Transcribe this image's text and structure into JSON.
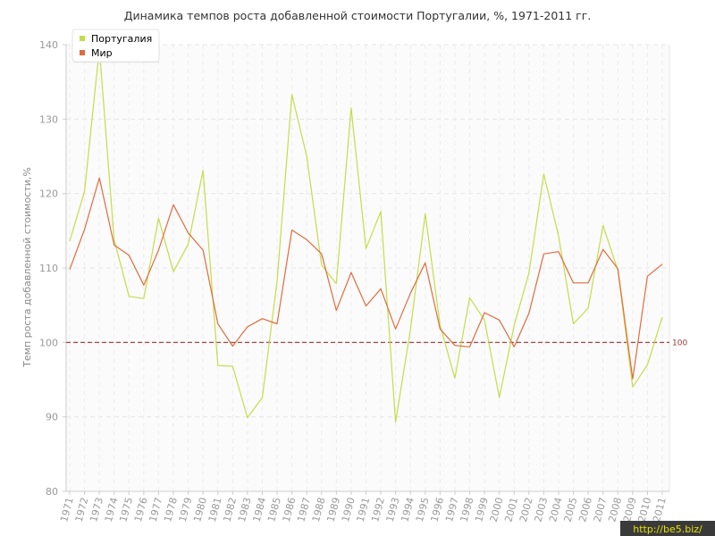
{
  "chart_data": {
    "type": "line",
    "title": "Динамика темпов роста добавленной стоимости Португалии, %, 1971-2011 гг.",
    "xlabel": "",
    "ylabel": "Темп роста добавленной стоимости,%",
    "ylim": [
      80,
      140
    ],
    "yticks": [
      80,
      90,
      100,
      110,
      120,
      130,
      140
    ],
    "x": [
      "1971",
      "1972",
      "1973",
      "1974",
      "1975",
      "1976",
      "1977",
      "1978",
      "1979",
      "1980",
      "1981",
      "1982",
      "1983",
      "1984",
      "1985",
      "1986",
      "1987",
      "1988",
      "1989",
      "1990",
      "1991",
      "1992",
      "1993",
      "1994",
      "1995",
      "1996",
      "1997",
      "1998",
      "1999",
      "2000",
      "2001",
      "2002",
      "2003",
      "2004",
      "2005",
      "2006",
      "2007",
      "2008",
      "2009",
      "2010",
      "2011"
    ],
    "series": [
      {
        "name": "Португалия",
        "color": "#c5dc4a",
        "values": [
          113.6,
          120.3,
          139.5,
          113.8,
          106.2,
          105.9,
          116.7,
          109.5,
          113.2,
          123.1,
          96.9,
          96.8,
          89.9,
          92.6,
          108.2,
          133.3,
          125.0,
          110.4,
          107.9,
          131.5,
          112.6,
          117.6,
          89.3,
          101.7,
          117.3,
          102.3,
          95.2,
          106.0,
          103.0,
          92.6,
          102.3,
          109.3,
          122.6,
          114.3,
          102.5,
          104.6,
          115.7,
          109.7,
          94.0,
          97.0,
          103.4
        ]
      },
      {
        "name": "Мир",
        "color": "#e06c3e",
        "values": [
          109.8,
          115.2,
          122.1,
          113.1,
          111.7,
          107.7,
          112.4,
          118.5,
          114.7,
          112.4,
          102.5,
          99.5,
          102.1,
          103.2,
          102.5,
          115.1,
          113.8,
          111.9,
          104.3,
          109.4,
          104.9,
          107.2,
          101.8,
          106.6,
          110.7,
          101.8,
          99.6,
          99.4,
          104.0,
          103.0,
          99.4,
          103.9,
          111.9,
          112.2,
          108.0,
          108.0,
          112.5,
          109.9,
          95.1,
          108.9,
          110.5
        ]
      }
    ],
    "reference_line": {
      "value": 100,
      "label": "100",
      "color": "#993333"
    },
    "grid": true,
    "legend_position": "top-left"
  },
  "watermark": "http://be5.biz/"
}
